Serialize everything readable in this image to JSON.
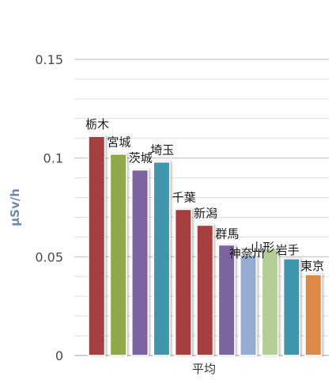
{
  "chart_data": {
    "type": "bar",
    "title": "",
    "xlabel": "",
    "ylabel": "μSv/h",
    "category_label": "平均",
    "ylim": [
      0,
      0.15
    ],
    "y_ticks": [
      {
        "value": 0,
        "label": "0"
      },
      {
        "value": 0.05,
        "label": "0.05"
      },
      {
        "value": 0.1,
        "label": "0.1"
      },
      {
        "value": 0.15,
        "label": "0.15"
      }
    ],
    "minor_grid_step": 0.01,
    "grid": true,
    "legend": "none",
    "series": [
      {
        "name": "栃木",
        "value": 0.111,
        "color": "#a64040"
      },
      {
        "name": "宮城",
        "value": 0.102,
        "color": "#8fa84a"
      },
      {
        "name": "茨城",
        "value": 0.094,
        "color": "#7d64a0"
      },
      {
        "name": "埼玉",
        "value": 0.098,
        "color": "#3f97ad"
      },
      {
        "name": "千葉",
        "value": 0.074,
        "color": "#a64040"
      },
      {
        "name": "新潟",
        "value": 0.066,
        "color": "#a64040"
      },
      {
        "name": "群馬",
        "value": 0.056,
        "color": "#7d64a0"
      },
      {
        "name": "神奈川",
        "value": 0.051,
        "color": "#94abd2"
      },
      {
        "name": "山形",
        "value": 0.054,
        "color": "#b4cf96"
      },
      {
        "name": "岩手",
        "value": 0.049,
        "color": "#3f97ad"
      },
      {
        "name": "東京",
        "value": 0.041,
        "color": "#dc8a44"
      }
    ]
  }
}
